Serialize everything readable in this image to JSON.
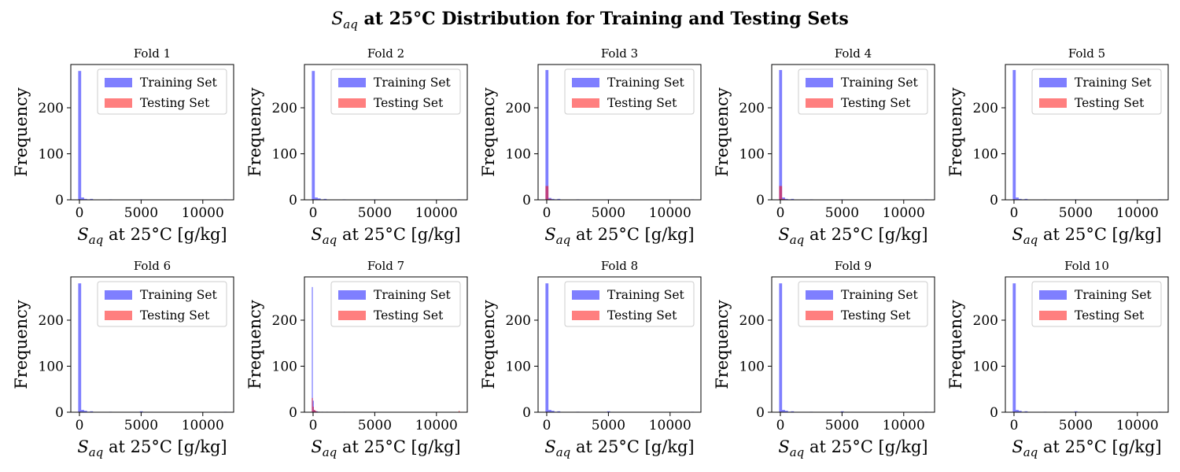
{
  "figure": {
    "title_symbol": "S",
    "title_subscript": "aq",
    "title_rest": " at 25°C Distribution for Training and Testing Sets"
  },
  "chart_data": [
    {
      "type": "bar",
      "title": "Fold 1",
      "xlabel_symbol": "S",
      "xlabel_subscript": "aq",
      "xlabel_rest": " at 25°C [g/kg]",
      "ylabel": "Frequency",
      "xlim": [
        -700,
        12500
      ],
      "ylim": [
        0,
        294
      ],
      "xticks": [
        0,
        5000,
        10000
      ],
      "xtick_labels": [
        "0",
        "5000",
        "10000"
      ],
      "yticks": [
        0,
        100,
        200
      ],
      "ytick_labels": [
        "0",
        "100",
        "200"
      ],
      "legend": "top-right",
      "series": [
        {
          "name": "Training Set",
          "color": "#0000ff",
          "opacity": 0.5,
          "bins": [
            [
              -100,
              140,
              280
            ],
            [
              140,
              380,
              5
            ],
            [
              380,
              620,
              2
            ],
            [
              620,
              860,
              1
            ],
            [
              860,
              1100,
              2
            ],
            [
              2400,
              2640,
              1
            ],
            [
              4900,
              5140,
              1
            ],
            [
              11700,
              11940,
              1
            ]
          ]
        },
        {
          "name": "Testing Set",
          "color": "#ff0000",
          "opacity": 0.5,
          "bins": [
            [
              -100,
              140,
              1
            ]
          ]
        }
      ]
    },
    {
      "type": "bar",
      "title": "Fold 2",
      "xlabel_symbol": "S",
      "xlabel_subscript": "aq",
      "xlabel_rest": " at 25°C [g/kg]",
      "ylabel": "Frequency",
      "xlim": [
        -700,
        12500
      ],
      "ylim": [
        0,
        294
      ],
      "xticks": [
        0,
        5000,
        10000
      ],
      "xtick_labels": [
        "0",
        "5000",
        "10000"
      ],
      "yticks": [
        0,
        100,
        200
      ],
      "ytick_labels": [
        "0",
        "100",
        "200"
      ],
      "legend": "top-right",
      "series": [
        {
          "name": "Training Set",
          "color": "#0000ff",
          "opacity": 0.5,
          "bins": [
            [
              -100,
              140,
              280
            ],
            [
              140,
              380,
              5
            ],
            [
              380,
              620,
              3
            ],
            [
              620,
              860,
              1
            ],
            [
              860,
              1100,
              2
            ],
            [
              2400,
              2640,
              1
            ],
            [
              4900,
              5140,
              1
            ],
            [
              11700,
              11940,
              1
            ]
          ]
        },
        {
          "name": "Testing Set",
          "color": "#ff0000",
          "opacity": 0.5,
          "bins": [
            [
              -100,
              140,
              1
            ]
          ]
        }
      ]
    },
    {
      "type": "bar",
      "title": "Fold 3",
      "xlabel_symbol": "S",
      "xlabel_subscript": "aq",
      "xlabel_rest": " at 25°C [g/kg]",
      "ylabel": "Frequency",
      "xlim": [
        -700,
        12500
      ],
      "ylim": [
        0,
        294
      ],
      "xticks": [
        0,
        5000,
        10000
      ],
      "xtick_labels": [
        "0",
        "5000",
        "10000"
      ],
      "yticks": [
        0,
        100,
        200
      ],
      "ytick_labels": [
        "0",
        "100",
        "200"
      ],
      "legend": "top-right",
      "series": [
        {
          "name": "Training Set",
          "color": "#0000ff",
          "opacity": 0.5,
          "bins": [
            [
              -100,
              140,
              282
            ],
            [
              140,
              380,
              4
            ],
            [
              380,
              620,
              2
            ],
            [
              620,
              860,
              1
            ],
            [
              860,
              1100,
              2
            ],
            [
              2400,
              2640,
              1
            ],
            [
              4900,
              5140,
              1
            ],
            [
              11700,
              11940,
              1
            ]
          ]
        },
        {
          "name": "Testing Set",
          "color": "#ff0000",
          "opacity": 0.5,
          "bins": [
            [
              -100,
              140,
              30
            ],
            [
              140,
              380,
              2
            ]
          ]
        }
      ]
    },
    {
      "type": "bar",
      "title": "Fold 4",
      "xlabel_symbol": "S",
      "xlabel_subscript": "aq",
      "xlabel_rest": " at 25°C [g/kg]",
      "ylabel": "Frequency",
      "xlim": [
        -700,
        12500
      ],
      "ylim": [
        0,
        294
      ],
      "xticks": [
        0,
        5000,
        10000
      ],
      "xtick_labels": [
        "0",
        "5000",
        "10000"
      ],
      "yticks": [
        0,
        100,
        200
      ],
      "ytick_labels": [
        "0",
        "100",
        "200"
      ],
      "legend": "top-right",
      "series": [
        {
          "name": "Training Set",
          "color": "#0000ff",
          "opacity": 0.5,
          "bins": [
            [
              -100,
              140,
              282
            ],
            [
              140,
              380,
              5
            ],
            [
              380,
              620,
              2
            ],
            [
              620,
              860,
              1
            ],
            [
              860,
              1100,
              2
            ],
            [
              2400,
              2640,
              1
            ],
            [
              4900,
              5140,
              1
            ],
            [
              11700,
              11940,
              1
            ]
          ]
        },
        {
          "name": "Testing Set",
          "color": "#ff0000",
          "opacity": 0.5,
          "bins": [
            [
              -100,
              140,
              30
            ],
            [
              140,
              380,
              2
            ]
          ]
        }
      ]
    },
    {
      "type": "bar",
      "title": "Fold 5",
      "xlabel_symbol": "S",
      "xlabel_subscript": "aq",
      "xlabel_rest": " at 25°C [g/kg]",
      "ylabel": "Frequency",
      "xlim": [
        -700,
        12500
      ],
      "ylim": [
        0,
        294
      ],
      "xticks": [
        0,
        5000,
        10000
      ],
      "xtick_labels": [
        "0",
        "5000",
        "10000"
      ],
      "yticks": [
        0,
        100,
        200
      ],
      "ytick_labels": [
        "0",
        "100",
        "200"
      ],
      "legend": "top-right",
      "series": [
        {
          "name": "Training Set",
          "color": "#0000ff",
          "opacity": 0.5,
          "bins": [
            [
              -100,
              140,
              282
            ],
            [
              140,
              380,
              5
            ],
            [
              380,
              620,
              2
            ],
            [
              620,
              860,
              1
            ],
            [
              860,
              1100,
              2
            ],
            [
              2400,
              2640,
              1
            ],
            [
              4900,
              5140,
              1
            ],
            [
              11700,
              11940,
              1
            ]
          ]
        },
        {
          "name": "Testing Set",
          "color": "#ff0000",
          "opacity": 0.5,
          "bins": [
            [
              -100,
              140,
              1
            ]
          ]
        }
      ]
    },
    {
      "type": "bar",
      "title": "Fold 6",
      "xlabel_symbol": "S",
      "xlabel_subscript": "aq",
      "xlabel_rest": " at 25°C [g/kg]",
      "ylabel": "Frequency",
      "xlim": [
        -700,
        12500
      ],
      "ylim": [
        0,
        294
      ],
      "xticks": [
        0,
        5000,
        10000
      ],
      "xtick_labels": [
        "0",
        "5000",
        "10000"
      ],
      "yticks": [
        0,
        100,
        200
      ],
      "ytick_labels": [
        "0",
        "100",
        "200"
      ],
      "legend": "top-right",
      "series": [
        {
          "name": "Training Set",
          "color": "#0000ff",
          "opacity": 0.5,
          "bins": [
            [
              -100,
              140,
              280
            ],
            [
              140,
              380,
              5
            ],
            [
              380,
              620,
              3
            ],
            [
              620,
              860,
              1
            ],
            [
              860,
              1100,
              2
            ],
            [
              2400,
              2640,
              1
            ],
            [
              4900,
              5140,
              2
            ],
            [
              11700,
              11940,
              1
            ]
          ]
        },
        {
          "name": "Testing Set",
          "color": "#ff0000",
          "opacity": 0.5,
          "bins": [
            [
              -100,
              140,
              1
            ]
          ]
        }
      ]
    },
    {
      "type": "bar",
      "title": "Fold 7",
      "xlabel_symbol": "S",
      "xlabel_subscript": "aq",
      "xlabel_rest": " at 25°C [g/kg]",
      "ylabel": "Frequency",
      "xlim": [
        -700,
        12500
      ],
      "ylim": [
        0,
        294
      ],
      "xticks": [
        0,
        5000,
        10000
      ],
      "xtick_labels": [
        "0",
        "5000",
        "10000"
      ],
      "yticks": [
        0,
        100,
        200
      ],
      "ytick_labels": [
        "0",
        "100",
        "200"
      ],
      "legend": "top-right",
      "series": [
        {
          "name": "Training Set",
          "color": "#0000ff",
          "opacity": 0.5,
          "bins": [
            [
              -100,
              -20,
              272
            ],
            [
              -20,
              60,
              25
            ],
            [
              60,
              140,
              5
            ],
            [
              140,
              220,
              3
            ],
            [
              220,
              300,
              2
            ],
            [
              300,
              380,
              2
            ],
            [
              380,
              460,
              1
            ],
            [
              460,
              540,
              1
            ],
            [
              700,
              780,
              1
            ],
            [
              1100,
              1180,
              1
            ],
            [
              2500,
              2580,
              1
            ],
            [
              5000,
              5080,
              1
            ],
            [
              11800,
              11880,
              1
            ]
          ]
        },
        {
          "name": "Testing Set",
          "color": "#ff0000",
          "opacity": 0.5,
          "bins": [
            [
              -100,
              -20,
              31
            ],
            [
              -20,
              60,
              12
            ],
            [
              60,
              140,
              5
            ],
            [
              140,
              220,
              4
            ],
            [
              220,
              300,
              2
            ],
            [
              300,
              380,
              1
            ],
            [
              380,
              460,
              1
            ],
            [
              460,
              540,
              1
            ],
            [
              11800,
              11880,
              3
            ]
          ]
        }
      ]
    },
    {
      "type": "bar",
      "title": "Fold 8",
      "xlabel_symbol": "S",
      "xlabel_subscript": "aq",
      "xlabel_rest": " at 25°C [g/kg]",
      "ylabel": "Frequency",
      "xlim": [
        -700,
        12500
      ],
      "ylim": [
        0,
        294
      ],
      "xticks": [
        0,
        5000,
        10000
      ],
      "xtick_labels": [
        "0",
        "5000",
        "10000"
      ],
      "yticks": [
        0,
        100,
        200
      ],
      "ytick_labels": [
        "0",
        "100",
        "200"
      ],
      "legend": "top-right",
      "series": [
        {
          "name": "Training Set",
          "color": "#0000ff",
          "opacity": 0.5,
          "bins": [
            [
              -100,
              140,
              280
            ],
            [
              140,
              380,
              5
            ],
            [
              380,
              620,
              3
            ],
            [
              620,
              860,
              1
            ],
            [
              860,
              1100,
              2
            ],
            [
              2400,
              2640,
              1
            ],
            [
              4900,
              5140,
              2
            ],
            [
              11700,
              11940,
              1
            ]
          ]
        },
        {
          "name": "Testing Set",
          "color": "#ff0000",
          "opacity": 0.5,
          "bins": [
            [
              -100,
              140,
              1
            ]
          ]
        }
      ]
    },
    {
      "type": "bar",
      "title": "Fold 9",
      "xlabel_symbol": "S",
      "xlabel_subscript": "aq",
      "xlabel_rest": " at 25°C [g/kg]",
      "ylabel": "Frequency",
      "xlim": [
        -700,
        12500
      ],
      "ylim": [
        0,
        294
      ],
      "xticks": [
        0,
        5000,
        10000
      ],
      "xtick_labels": [
        "0",
        "5000",
        "10000"
      ],
      "yticks": [
        0,
        100,
        200
      ],
      "ytick_labels": [
        "0",
        "100",
        "200"
      ],
      "legend": "top-right",
      "series": [
        {
          "name": "Training Set",
          "color": "#0000ff",
          "opacity": 0.5,
          "bins": [
            [
              -100,
              140,
              280
            ],
            [
              140,
              380,
              5
            ],
            [
              380,
              620,
              3
            ],
            [
              620,
              860,
              1
            ],
            [
              860,
              1100,
              2
            ],
            [
              2400,
              2640,
              1
            ],
            [
              4900,
              5140,
              2
            ],
            [
              11700,
              11940,
              1
            ]
          ]
        },
        {
          "name": "Testing Set",
          "color": "#ff0000",
          "opacity": 0.5,
          "bins": [
            [
              -100,
              140,
              1
            ]
          ]
        }
      ]
    },
    {
      "type": "bar",
      "title": "Fold 10",
      "xlabel_symbol": "S",
      "xlabel_subscript": "aq",
      "xlabel_rest": " at 25°C [g/kg]",
      "ylabel": "Frequency",
      "xlim": [
        -700,
        12500
      ],
      "ylim": [
        0,
        294
      ],
      "xticks": [
        0,
        5000,
        10000
      ],
      "xtick_labels": [
        "0",
        "5000",
        "10000"
      ],
      "yticks": [
        0,
        100,
        200
      ],
      "ytick_labels": [
        "0",
        "100",
        "200"
      ],
      "legend": "top-right",
      "series": [
        {
          "name": "Training Set",
          "color": "#0000ff",
          "opacity": 0.5,
          "bins": [
            [
              -100,
              140,
              280
            ],
            [
              140,
              380,
              5
            ],
            [
              380,
              620,
              3
            ],
            [
              620,
              860,
              1
            ],
            [
              860,
              1100,
              2
            ],
            [
              2400,
              2640,
              1
            ],
            [
              4900,
              5140,
              2
            ],
            [
              11700,
              11940,
              1
            ]
          ]
        },
        {
          "name": "Testing Set",
          "color": "#ff0000",
          "opacity": 0.5,
          "bins": [
            [
              -100,
              140,
              1
            ]
          ]
        }
      ]
    }
  ]
}
